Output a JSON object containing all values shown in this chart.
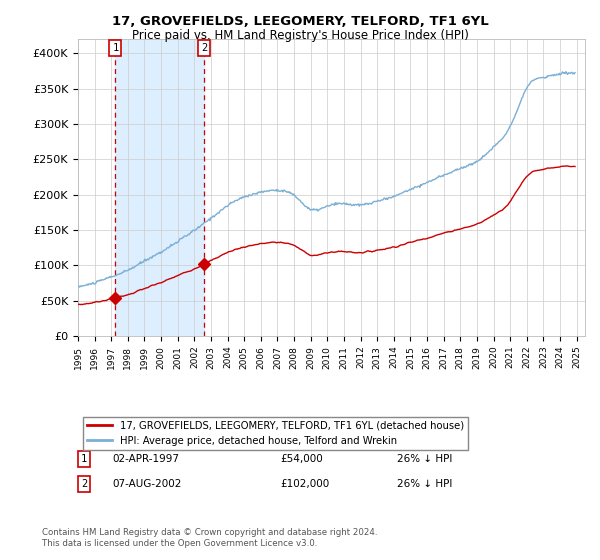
{
  "title": "17, GROVEFIELDS, LEEGOMERY, TELFORD, TF1 6YL",
  "subtitle": "Price paid vs. HM Land Registry's House Price Index (HPI)",
  "sale1_date": "02-APR-1997",
  "sale1_price": 54000,
  "sale1_label": "26% ↓ HPI",
  "sale1_x": 1997.25,
  "sale2_date": "07-AUG-2002",
  "sale2_price": 102000,
  "sale2_label": "26% ↓ HPI",
  "sale2_x": 2002.6,
  "legend_line1": "17, GROVEFIELDS, LEEGOMERY, TELFORD, TF1 6YL (detached house)",
  "legend_line2": "HPI: Average price, detached house, Telford and Wrekin",
  "footer1": "Contains HM Land Registry data © Crown copyright and database right 2024.",
  "footer2": "This data is licensed under the Open Government Licence v3.0.",
  "line_color_sales": "#cc0000",
  "line_color_hpi": "#7bafd4",
  "shade_color": "#ddeeff",
  "vline_color": "#cc0000",
  "bg_color": "#ffffff",
  "xlim": [
    1995,
    2025.5
  ],
  "ylim": [
    0,
    420000
  ],
  "yticks": [
    0,
    50000,
    100000,
    150000,
    200000,
    250000,
    300000,
    350000,
    400000
  ],
  "ytick_labels": [
    "£0",
    "£50K",
    "£100K",
    "£150K",
    "£200K",
    "£250K",
    "£300K",
    "£350K",
    "£400K"
  ]
}
